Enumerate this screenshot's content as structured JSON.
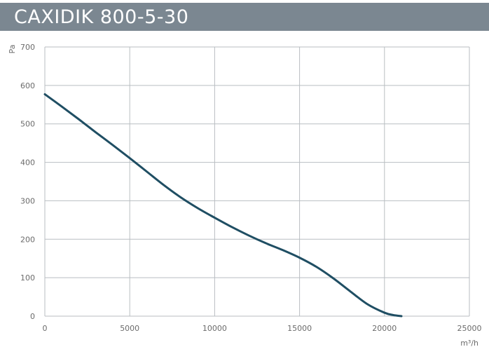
{
  "chart_data": {
    "type": "line",
    "title": "CAXIDIK 800-5-30",
    "xlabel": "m³/h",
    "ylabel": "Pa",
    "xlim": [
      0,
      25000
    ],
    "ylim": [
      0,
      700
    ],
    "xticks": [
      0,
      5000,
      10000,
      15000,
      20000,
      25000
    ],
    "yticks": [
      0,
      100,
      200,
      300,
      400,
      500,
      600,
      700
    ],
    "xtick_labels": [
      "0",
      "5000",
      "10000",
      "15000",
      "20000",
      "25000"
    ],
    "ytick_labels": [
      "0",
      "100",
      "200",
      "300",
      "400",
      "500",
      "600",
      "700"
    ],
    "grid": true,
    "series": [
      {
        "color": "#1f4e63",
        "x": [
          0,
          1000,
          2000,
          3000,
          4000,
          5000,
          6000,
          7000,
          8000,
          9000,
          10000,
          11000,
          12000,
          13000,
          14000,
          15000,
          16000,
          17000,
          18000,
          19000,
          20000,
          20500,
          21000
        ],
        "y": [
          577,
          545,
          512,
          478,
          445,
          411,
          376,
          341,
          309,
          281,
          256,
          232,
          210,
          190,
          172,
          152,
          128,
          98,
          64,
          31,
          9,
          3,
          0
        ]
      }
    ]
  }
}
